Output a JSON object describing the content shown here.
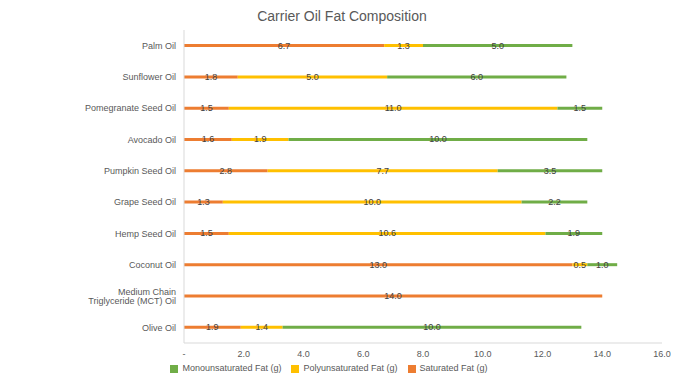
{
  "chart_data": {
    "type": "bar",
    "title": "Carrier Oil Fat Composition",
    "orientation": "horizontal",
    "stacked": true,
    "data_labels": true,
    "grid": false,
    "legend": "bottom",
    "categories": [
      "Palm Oil",
      "Sunflower Oil",
      "Pomegranate Seed Oil",
      "Avocado Oil",
      "Pumpkin Seed Oil",
      "Grape Seed Oil",
      "Hemp Seed Oil",
      "Coconut Oil",
      "Medium Chain Triglyceride (MCT) Oil",
      "Olive Oil"
    ],
    "series": [
      {
        "name": "Saturated Fat (g)",
        "color": "#ed7d31",
        "values": [
          6.7,
          1.8,
          1.5,
          1.6,
          2.8,
          1.3,
          1.5,
          13.0,
          14.0,
          1.9
        ],
        "value_labels": [
          "6.7",
          "1.8",
          "1.5",
          "1.6",
          "2.8",
          "1.3",
          "1.5",
          "13.0",
          "14.0",
          "1.9"
        ]
      },
      {
        "name": "Polyunsaturated Fat (g)",
        "color": "#ffc000",
        "values": [
          1.3,
          5.0,
          11.0,
          1.9,
          7.7,
          10.0,
          10.6,
          0.5,
          null,
          1.4
        ],
        "value_labels": [
          "1.3",
          "5.0",
          "11.0",
          "1.9",
          "7.7",
          "10.0",
          "10.6",
          "0.5",
          null,
          "1.4"
        ]
      },
      {
        "name": "Monounsaturated Fat (g)",
        "color": "#70ad47",
        "values": [
          5.0,
          6.0,
          1.5,
          10.0,
          3.5,
          2.2,
          1.9,
          1.0,
          null,
          10.0
        ],
        "value_labels": [
          "5.0",
          "6.0",
          "1.5",
          "10.0",
          "3.5",
          "2.2",
          "1.9",
          "1.0",
          null,
          "10.0"
        ]
      }
    ],
    "xlim": [
      0,
      16
    ],
    "xticks": [
      {
        "value": 0,
        "label": "-"
      },
      {
        "value": 2,
        "label": "2.0"
      },
      {
        "value": 4,
        "label": "4.0"
      },
      {
        "value": 6,
        "label": "6.0"
      },
      {
        "value": 8,
        "label": "8.0"
      },
      {
        "value": 10,
        "label": "10.0"
      },
      {
        "value": 12,
        "label": "12.0"
      },
      {
        "value": 14,
        "label": "14.0"
      },
      {
        "value": 16,
        "label": "16.0"
      }
    ]
  }
}
